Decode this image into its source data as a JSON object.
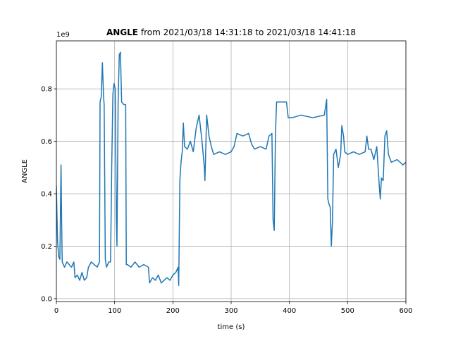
{
  "chart_data": {
    "type": "line",
    "title": {
      "variable": "ANGLE",
      "range": "from 2021/03/18 14:31:18 to 2021/03/18 14:41:18"
    },
    "xlabel": "time (s)",
    "ylabel": "ANGLE",
    "offset_label": "1e9",
    "xlim": [
      0,
      600
    ],
    "ylim": [
      -0.011,
      0.983
    ],
    "xticks": [
      0,
      100,
      200,
      300,
      400,
      500,
      600
    ],
    "yticks": [
      {
        "value": 0,
        "label": "0.0"
      },
      0.2,
      0.4,
      0.6,
      0.8
    ],
    "grid": true,
    "series": [
      {
        "name": "ANGLE",
        "color": "#1f77b4",
        "x": [
          0,
          2,
          4,
          6,
          8,
          9,
          10,
          14,
          18,
          22,
          26,
          30,
          32,
          36,
          40,
          44,
          48,
          52,
          55,
          60,
          65,
          70,
          74,
          75,
          77,
          79,
          81,
          82,
          84,
          86,
          90,
          93,
          95,
          97,
          99,
          101,
          103,
          104,
          106,
          108,
          110,
          112,
          116,
          119,
          120,
          122,
          128,
          135,
          142,
          150,
          158,
          160,
          165,
          170,
          175,
          180,
          185,
          190,
          195,
          200,
          205,
          209,
          210,
          212,
          214,
          216,
          218,
          220,
          225,
          230,
          235,
          240,
          245,
          250,
          254,
          255,
          258,
          262,
          266,
          270,
          280,
          290,
          300,
          305,
          310,
          320,
          330,
          335,
          340,
          350,
          360,
          365,
          370,
          372,
          374,
          376,
          378,
          385,
          395,
          398,
          405,
          420,
          440,
          460,
          464,
          466,
          468,
          470,
          472,
          474,
          476,
          480,
          484,
          488,
          490,
          493,
          495,
          500,
          510,
          520,
          530,
          533,
          536,
          540,
          545,
          550,
          554,
          556,
          558,
          561,
          564,
          567,
          570,
          575,
          585,
          595,
          600
        ],
        "values": [
          0.43,
          0.22,
          0.16,
          0.15,
          0.51,
          0.3,
          0.14,
          0.12,
          0.14,
          0.13,
          0.12,
          0.14,
          0.08,
          0.09,
          0.07,
          0.1,
          0.07,
          0.08,
          0.12,
          0.14,
          0.13,
          0.12,
          0.14,
          0.75,
          0.77,
          0.9,
          0.77,
          0.74,
          0.15,
          0.12,
          0.14,
          0.14,
          0.5,
          0.78,
          0.82,
          0.8,
          0.3,
          0.2,
          0.75,
          0.93,
          0.94,
          0.75,
          0.74,
          0.74,
          0.13,
          0.13,
          0.12,
          0.14,
          0.12,
          0.13,
          0.12,
          0.06,
          0.08,
          0.07,
          0.09,
          0.06,
          0.07,
          0.08,
          0.07,
          0.09,
          0.1,
          0.12,
          0.05,
          0.45,
          0.52,
          0.56,
          0.67,
          0.58,
          0.57,
          0.6,
          0.56,
          0.65,
          0.7,
          0.6,
          0.5,
          0.45,
          0.7,
          0.62,
          0.58,
          0.55,
          0.56,
          0.55,
          0.56,
          0.58,
          0.63,
          0.62,
          0.63,
          0.59,
          0.57,
          0.58,
          0.57,
          0.62,
          0.63,
          0.3,
          0.26,
          0.62,
          0.75,
          0.75,
          0.75,
          0.69,
          0.69,
          0.7,
          0.69,
          0.7,
          0.76,
          0.38,
          0.36,
          0.35,
          0.2,
          0.3,
          0.55,
          0.57,
          0.5,
          0.55,
          0.66,
          0.62,
          0.56,
          0.55,
          0.56,
          0.55,
          0.56,
          0.62,
          0.57,
          0.57,
          0.53,
          0.58,
          0.44,
          0.38,
          0.46,
          0.45,
          0.62,
          0.64,
          0.55,
          0.52,
          0.53,
          0.51,
          0.52
        ]
      }
    ]
  }
}
